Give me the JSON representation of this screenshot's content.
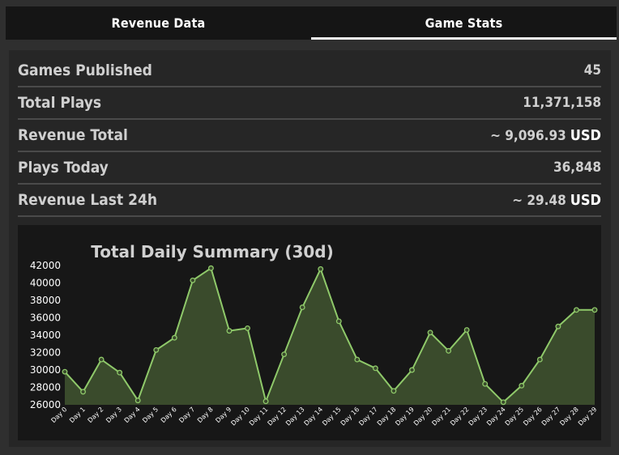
{
  "tabs": [
    {
      "label": "Revenue Data",
      "active": false
    },
    {
      "label": "Game Stats",
      "active": true
    }
  ],
  "stats": [
    {
      "label": "Games Published",
      "value": "45",
      "unit": ""
    },
    {
      "label": "Total Plays",
      "value": "11,371,158",
      "unit": ""
    },
    {
      "label": "Revenue Total",
      "value": "~ 9,096.93",
      "unit": "USD"
    },
    {
      "label": "Plays Today",
      "value": "36,848",
      "unit": ""
    },
    {
      "label": "Revenue Last 24h",
      "value": "~ 29.48",
      "unit": "USD"
    }
  ],
  "colors": {
    "line": "#8fc96a",
    "fill": "#3a4b2c",
    "background": "#171717"
  },
  "chart_data": {
    "type": "area",
    "title": "Total Daily Summary (30d)",
    "xlabel": "",
    "ylabel": "",
    "categories": [
      "Day 0",
      "Day 1",
      "Day 2",
      "Day 3",
      "Day 4",
      "Day 5",
      "Day 6",
      "Day 7",
      "Day 8",
      "Day 9",
      "Day 10",
      "Day 11",
      "Day 12",
      "Day 13",
      "Day 14",
      "Day 15",
      "Day 16",
      "Day 17",
      "Day 18",
      "Day 19",
      "Day 20",
      "Day 21",
      "Day 22",
      "Day 23",
      "Day 24",
      "Day 25",
      "Day 26",
      "Day 27",
      "Day 28",
      "Day 29"
    ],
    "values": [
      29800,
      27500,
      31200,
      29700,
      26500,
      32300,
      33700,
      40300,
      41700,
      34500,
      34800,
      26400,
      31800,
      37200,
      41600,
      35600,
      31200,
      30200,
      27600,
      30000,
      34300,
      32200,
      34600,
      28400,
      26300,
      28200,
      31200,
      35000,
      36900,
      36900
    ],
    "ylim": [
      26000,
      42000
    ],
    "yticks": [
      26000,
      28000,
      30000,
      32000,
      34000,
      36000,
      38000,
      40000,
      42000
    ],
    "grid": false,
    "legend": "none"
  }
}
